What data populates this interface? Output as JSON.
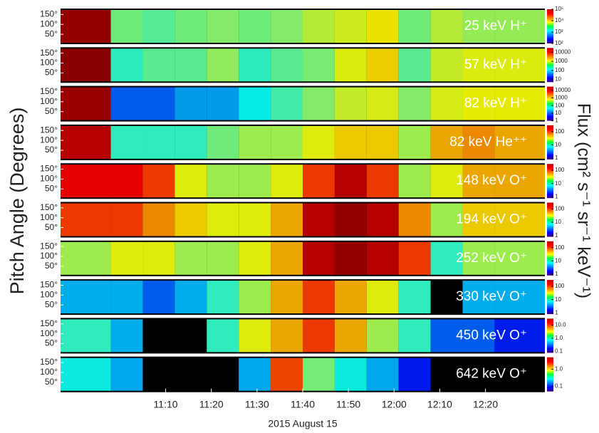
{
  "chart_data": {
    "type": "heatmap",
    "y_label": "Pitch Angle (Degrees)",
    "colorbar_label": "Flux (cm² s⁻¹ sr⁻¹ keV⁻¹)",
    "x_label": "2015 August 15",
    "xlim": [
      "10:47",
      "12:33"
    ],
    "xticks": [
      "11:10",
      "11:20",
      "11:30",
      "11:40",
      "11:50",
      "12:00",
      "12:10",
      "12:20"
    ],
    "time_bins": [
      "10:47",
      "10:58",
      "11:05",
      "11:12",
      "11:19",
      "11:26",
      "11:33",
      "11:40",
      "11:47",
      "11:54",
      "12:01",
      "12:08",
      "12:15",
      "12:22",
      "12:33"
    ],
    "ylim": [
      0,
      180
    ],
    "yticks": [
      {
        "value": 150,
        "label": "150°"
      },
      {
        "value": 100,
        "label": "100°"
      },
      {
        "value": 50,
        "label": "50°"
      }
    ],
    "color_log": true,
    "panels": [
      {
        "title": "25 keV H⁺",
        "clim": [
          100,
          100000
        ],
        "cticks": [
          {
            "value": 100000,
            "label": "10⁵"
          },
          {
            "value": 10000,
            "label": "10⁴"
          },
          {
            "value": 1000,
            "label": "10³"
          },
          {
            "value": 100,
            "label": "10²"
          }
        ],
        "values": [
          80000,
          3000,
          2500,
          3000,
          3500,
          3000,
          3500,
          5000,
          6000,
          8000,
          3000,
          5000,
          4000,
          4000
        ]
      },
      {
        "title": "57 keV H⁺",
        "clim": [
          5,
          30000
        ],
        "cticks": [
          10000,
          1000,
          100,
          10
        ],
        "values": [
          25000,
          200,
          300,
          300,
          500,
          200,
          300,
          400,
          1000,
          1500,
          300,
          800,
          1000,
          1000
        ]
      },
      {
        "title": "82 keV H⁺",
        "clim": [
          1,
          30000
        ],
        "cticks": [
          10000,
          1000,
          100,
          10,
          1
        ],
        "values": [
          20000,
          10,
          10,
          20,
          20,
          50,
          100,
          200,
          400,
          500,
          200,
          500,
          600,
          600
        ]
      },
      {
        "title": "82 keV He⁺⁺",
        "clim": [
          0.8,
          300
        ],
        "cticks": [
          100,
          10,
          1
        ],
        "values": [
          200,
          10,
          10,
          10,
          15,
          20,
          20,
          30,
          40,
          40,
          20,
          50,
          60,
          50
        ]
      },
      {
        "title": "148 keV O⁺",
        "clim": [
          0.8,
          300
        ],
        "cticks": [
          100,
          10,
          1
        ],
        "values": [
          150,
          150,
          100,
          30,
          20,
          20,
          30,
          100,
          200,
          100,
          20,
          30,
          50,
          50
        ]
      },
      {
        "title": "194 keV O⁺",
        "clim": [
          0.8,
          300
        ],
        "cticks": [
          100,
          10,
          1
        ],
        "values": [
          100,
          100,
          60,
          40,
          30,
          30,
          50,
          200,
          250,
          200,
          60,
          20,
          40,
          40
        ]
      },
      {
        "title": "252 keV O⁺",
        "clim": [
          0.8,
          300
        ],
        "cticks": [
          100,
          10,
          1
        ],
        "values": [
          20,
          30,
          30,
          20,
          20,
          30,
          50,
          200,
          250,
          200,
          100,
          10,
          20,
          20
        ]
      },
      {
        "title": "330 keV O⁺",
        "clim": [
          0.8,
          300
        ],
        "cticks": [
          100,
          10,
          1
        ],
        "values": [
          5,
          5,
          3,
          5,
          10,
          20,
          50,
          100,
          50,
          30,
          10,
          null,
          5,
          5
        ]
      },
      {
        "title": "450 keV O⁺",
        "clim": [
          0.08,
          30
        ],
        "cticks": [
          {
            "value": 10,
            "label": "10.0"
          },
          {
            "value": 1,
            "label": "1.0"
          },
          0.1
        ],
        "values": [
          1,
          0.5,
          null,
          null,
          1,
          3,
          5,
          10,
          5,
          2,
          1,
          0.3,
          0.3,
          0.2
        ]
      },
      {
        "title": "642 keV O⁺",
        "clim": [
          0.05,
          5
        ],
        "cticks": [
          {
            "value": 1,
            "label": "1.0"
          },
          0.1
        ],
        "values": [
          0.3,
          0.2,
          null,
          null,
          null,
          0.2,
          2,
          0.5,
          0.3,
          0.2,
          0.1,
          null,
          null,
          null
        ]
      }
    ]
  }
}
